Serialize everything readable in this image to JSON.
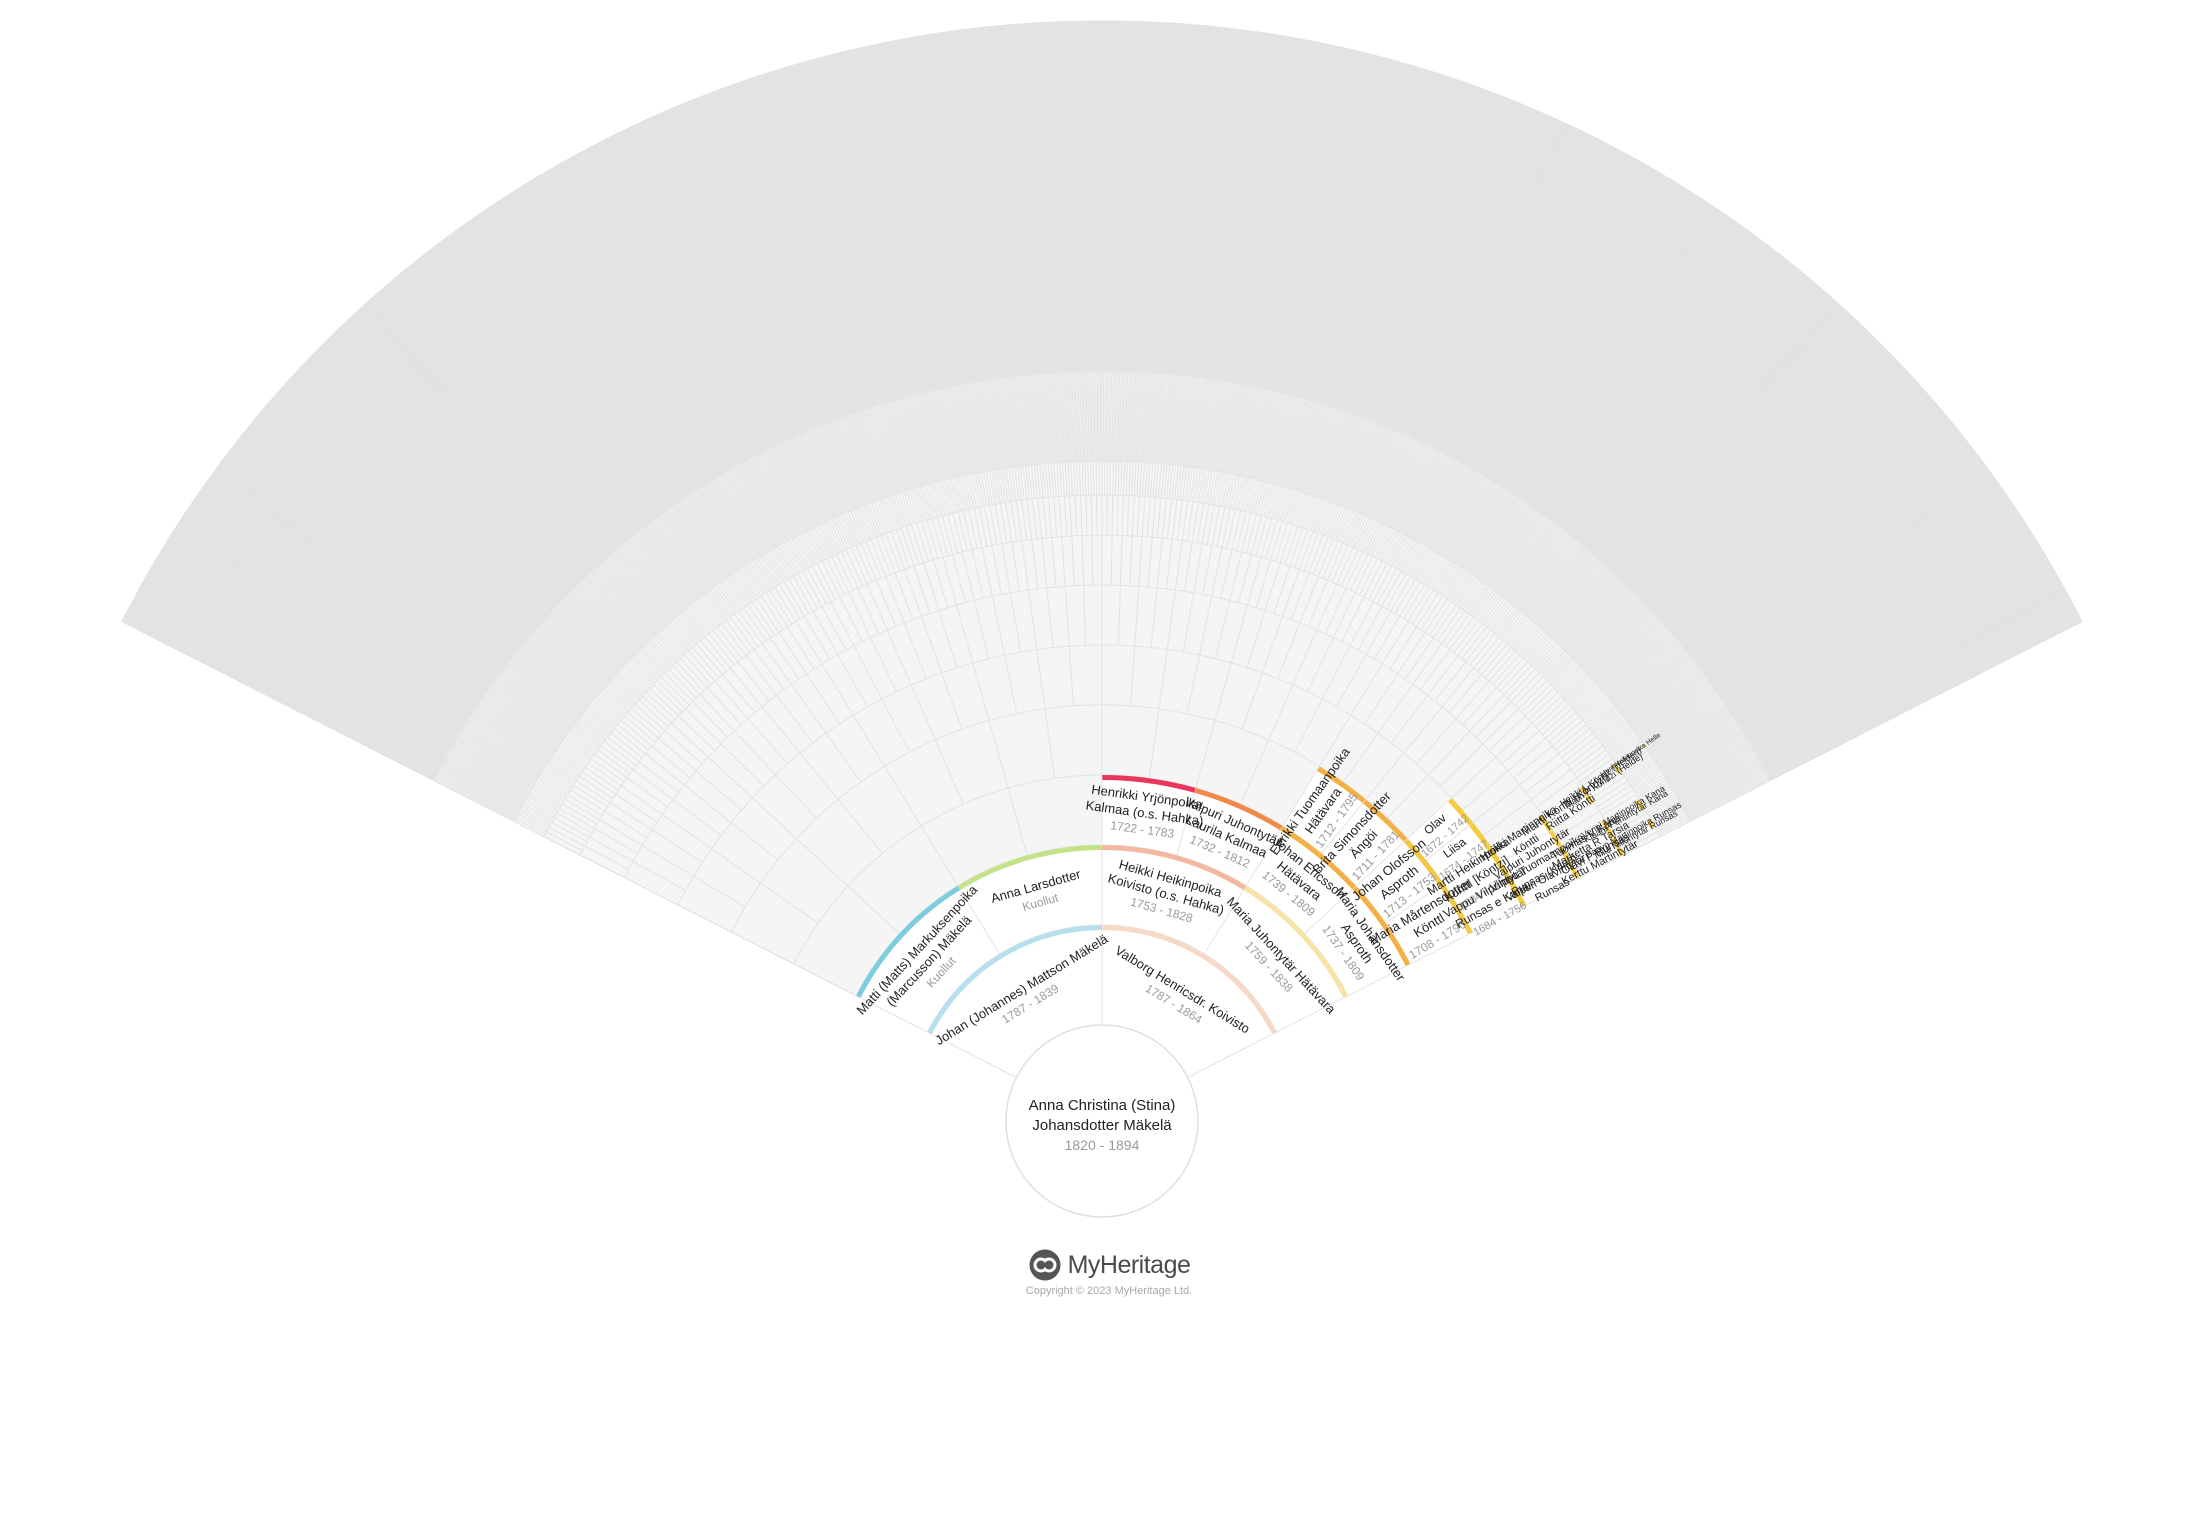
{
  "center": {
    "name_line1": "Anna Christina (Stina)",
    "name_line2": "Johansdotter Mäkelä",
    "years": "1820 - 1894"
  },
  "brand": {
    "name": "MyHeritage",
    "copyright": "Copyright © 2023 MyHeritage Ltd."
  },
  "colors": {
    "background": "#f5f5f5",
    "cell": "#ffffff",
    "grid": "#e3e3e3",
    "father_line": "#b7e0ee",
    "mother_line": "#f7d9c8",
    "paternal_grandmother": "#c4e389",
    "paternal_grandfather": "#7dcde0",
    "maternal_grandfather": "#f4b8a0",
    "maternal_grandmother": "#f8e3a6",
    "gen3_red": "#e8365d",
    "gen3_orange": "#f08a4b",
    "gen4_amber": "#f4b042",
    "gen4_yellow": "#f5c842",
    "gen5_yellow": "#f7cc3a"
  },
  "people": [
    {
      "id": "father",
      "lines": [
        "Johan (Johannes) Mattson Mäkelä"
      ],
      "years": "1787 - 1839"
    },
    {
      "id": "mother",
      "lines": [
        "Valborg Henricsdr. Koivisto"
      ],
      "years": "1787 - 1864"
    },
    {
      "id": "pgf",
      "lines": [
        "Matti (Matts) Markuksenpoika",
        "(Marcusson) Mäkelä"
      ],
      "years": "Kuollut"
    },
    {
      "id": "pgm",
      "lines": [
        "Anna Larsdotter"
      ],
      "years": "Kuollut"
    },
    {
      "id": "mgf",
      "lines": [
        "Heikki Heikinpoika",
        "Koivisto (o.s. Hahka)"
      ],
      "years": "1753 - 1828"
    },
    {
      "id": "mgm",
      "lines": [
        "Maria Juhontytär Hätävara"
      ],
      "years": "1759 - 1838"
    },
    {
      "id": "g3_henrikki",
      "lines": [
        "Henrikki Yrjönpoika",
        "Kalmaa (o.s. Hahka)"
      ],
      "years": "1722 - 1783"
    },
    {
      "id": "g3_valpuri",
      "lines": [
        "Valpuri Juhontytär",
        "Laurila Kalmaa"
      ],
      "years": "1732 - 1812"
    },
    {
      "id": "g3_johan",
      "lines": [
        "Johan Ericsson",
        "Hätävara"
      ],
      "years": "1739 - 1809"
    },
    {
      "id": "g3_maria",
      "lines": [
        "Maria Johansdotter",
        "Asproth"
      ],
      "years": "1737 - 1809"
    },
    {
      "id": "g4_eerikki",
      "lines": [
        "Eerikki Tuomaanpoika",
        "Hätävara"
      ],
      "years": "1712 - 1795"
    },
    {
      "id": "g4_brita",
      "lines": [
        "Brita Simonsdotter",
        "Ängöi"
      ],
      "years": "1711 - 1781"
    },
    {
      "id": "g4_johan",
      "lines": [
        "Johan Olofsson",
        "Asproth"
      ],
      "years": "1713 - 1753"
    },
    {
      "id": "g4_maria",
      "lines": [
        "Maria Mårtensdotter",
        "Könttl"
      ],
      "years": "1708 - 1790"
    },
    {
      "id": "g5_olav",
      "lines": [
        "Olav"
      ],
      "years": "1672 - 1742"
    },
    {
      "id": "g5_liisa",
      "lines": [
        "Liisa"
      ],
      "years": "1674 - 1747"
    },
    {
      "id": "g5_martti",
      "lines": [
        "Martti Heikinpoika",
        "Köntti [Köntzi]"
      ],
      "years": "1684 - 1754"
    },
    {
      "id": "g5_vappu",
      "lines": [
        "Vappu Vilpuntytär",
        "Runsas e Kana"
      ],
      "years": "1684 - 1756"
    },
    {
      "id": "g6_heikki",
      "lines": [
        "Heikki Martinpoika",
        "Köntti"
      ],
      "years": ""
    },
    {
      "id": "g6_valpuri",
      "lines": [
        "Valpuri Juhontytär"
      ],
      "years": ""
    },
    {
      "id": "g6_vilppu",
      "lines": [
        "Vilppu Tuomaanpoika",
        "Runsas (Kana)"
      ],
      "years": ""
    },
    {
      "id": "g6_valpuri2",
      "lines": [
        "Valpuri Olavintytär",
        "Runsas"
      ],
      "years": ""
    },
    {
      "id": "g7_martti",
      "lines": [
        "Martti Köntti (Köndzi)"
      ],
      "years": ""
    },
    {
      "id": "g7_riitta",
      "lines": [
        "Riitta Köntti"
      ],
      "years": ""
    },
    {
      "id": "g7_tuomas",
      "lines": [
        "Tuomas V Kana"
      ],
      "years": ""
    },
    {
      "id": "g7_marketta",
      "lines": [
        "Marketta R Tarsia"
      ],
      "years": ""
    },
    {
      "id": "g7_olavi",
      "lines": [
        "Olavi P Runsas"
      ],
      "years": ""
    },
    {
      "id": "g7_kerttu",
      "lines": [
        "Kerttu Martintytär"
      ],
      "years": ""
    },
    {
      "id": "g8_heikki",
      "lines": [
        "Heikki L Köndz (Helden)"
      ],
      "years": ""
    },
    {
      "id": "g8_malin",
      "lines": [
        "Malin P Köndzi (Helde)"
      ],
      "years": ""
    },
    {
      "id": "g8_venni",
      "lines": [
        "Venni Martinpoika Kana"
      ],
      "years": ""
    },
    {
      "id": "g8_klaara",
      "lines": [
        "Klaara Pentintytär Kana"
      ],
      "years": ""
    },
    {
      "id": "g8_paavo",
      "lines": [
        "Paavo Martinpoika Runsas"
      ],
      "years": ""
    },
    {
      "id": "g8_niila",
      "lines": [
        "Niila Niilontytär Runsas"
      ],
      "years": ""
    },
    {
      "id": "g9_lauri",
      "lines": [
        "Lauri Heikinpoika Helle"
      ],
      "years": ""
    }
  ]
}
